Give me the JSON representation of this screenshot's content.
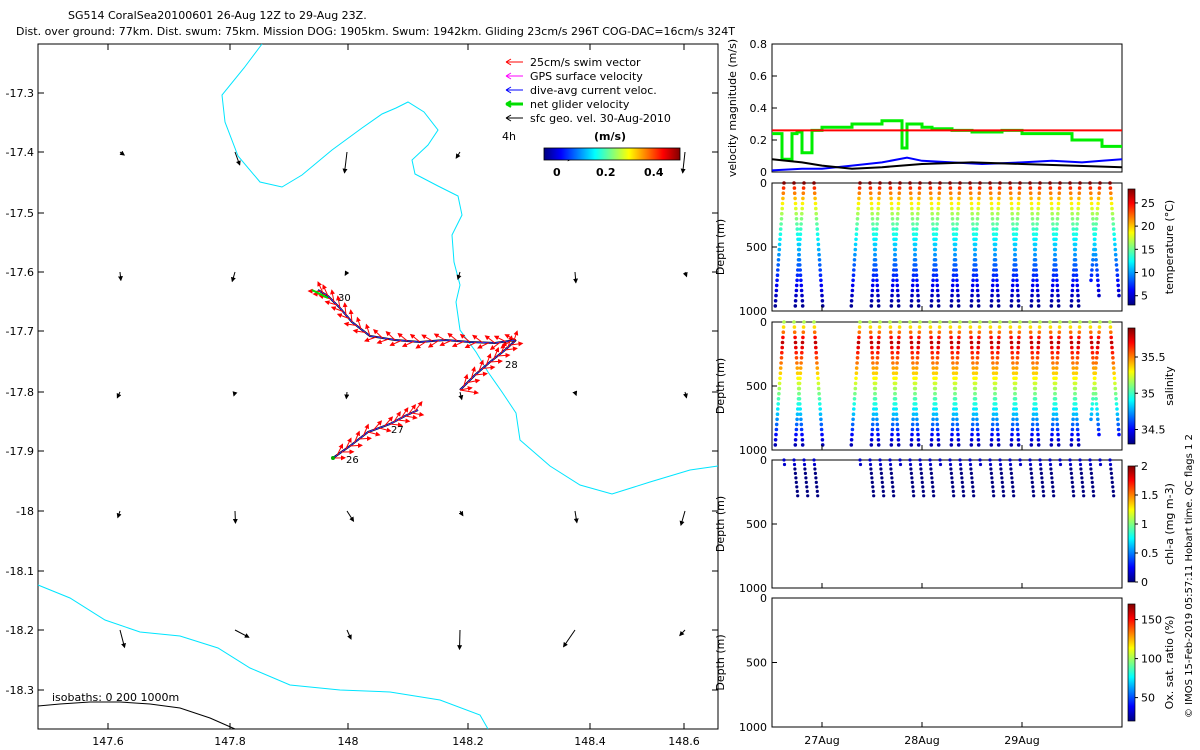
{
  "header": {
    "title_line1": "SG514 CoralSea20100601 26-Aug 12Z to 29-Aug 23Z.",
    "title_line2": "Dist. over ground: 77km. Dist. swum: 75km. Mission DOG: 1905km. Swum: 1942km. Gliding 23cm/s 296T COG-DAC=16cm/s 324T"
  },
  "side_note": "© IMOS 15-Feb-2019 05:57:11 Hobart time. QC flags 1  2",
  "map": {
    "xticks": [
      "147.6",
      "147.8",
      "148",
      "148.2",
      "148.4",
      "148.6"
    ],
    "yticks": [
      "-17.3",
      "-17.4",
      "-17.5",
      "-17.6",
      "-17.7",
      "-17.8",
      "-17.9",
      "-18",
      "-18.1",
      "-18.2",
      "-18.3"
    ],
    "legend": [
      {
        "label": "25cm/s swim vector",
        "color": "#ff0000"
      },
      {
        "label": "GPS surface velocity",
        "color": "#ff00ff"
      },
      {
        "label": "dive-avg current veloc.",
        "color": "#0000ff"
      },
      {
        "label": "net glider velocity",
        "color": "#00dd00"
      },
      {
        "label": "sfc geo. vel. 30-Aug-2010",
        "color": "#000000"
      }
    ],
    "legend_note": "4h",
    "colorbar_title": "(m/s)",
    "colorbar_ticks": [
      "0",
      "0.2",
      "0.4"
    ],
    "isobath_label": "isobaths: 0   200  1000m",
    "day_labels": [
      "26",
      "27",
      "28",
      "30"
    ]
  },
  "chart_data": [
    {
      "type": "line",
      "ylabel": "velocity magnitude (m/s)",
      "ylim": [
        0,
        0.8
      ],
      "yticks": [
        "0",
        "0.2",
        "0.4",
        "0.6",
        "0.8"
      ],
      "x_range_days": [
        26.5,
        30.0
      ],
      "series": [
        {
          "color": "#00ee00",
          "x": [
            26.5,
            26.6,
            26.6,
            26.7,
            26.7,
            26.75,
            26.75,
            26.8,
            26.8,
            26.9,
            26.9,
            27.0,
            27.0,
            27.3,
            27.3,
            27.6,
            27.6,
            27.8,
            27.8,
            27.85,
            27.85,
            28.0,
            28.0,
            28.1,
            28.1,
            28.3,
            28.3,
            28.5,
            28.5,
            28.8,
            28.8,
            29.0,
            29.0,
            29.5,
            29.5,
            29.8,
            29.8,
            30.0
          ],
          "y": [
            0.24,
            0.24,
            0.08,
            0.08,
            0.24,
            0.24,
            0.25,
            0.25,
            0.12,
            0.12,
            0.26,
            0.26,
            0.28,
            0.28,
            0.3,
            0.3,
            0.32,
            0.32,
            0.15,
            0.15,
            0.3,
            0.3,
            0.28,
            0.28,
            0.27,
            0.27,
            0.26,
            0.26,
            0.25,
            0.25,
            0.26,
            0.26,
            0.24,
            0.24,
            0.2,
            0.2,
            0.16,
            0.16
          ]
        },
        {
          "color": "#ff0000",
          "x": [
            26.5,
            27.3,
            27.85,
            30.0
          ],
          "y": [
            0.26,
            0.26,
            0.26,
            0.26
          ]
        },
        {
          "color": "#0000ff",
          "x": [
            26.5,
            26.8,
            27.0,
            27.3,
            27.6,
            27.85,
            28.0,
            28.3,
            28.6,
            29.0,
            29.3,
            29.6,
            29.8,
            30.0
          ],
          "y": [
            0.01,
            0.02,
            0.02,
            0.04,
            0.06,
            0.09,
            0.07,
            0.06,
            0.05,
            0.06,
            0.07,
            0.06,
            0.07,
            0.08
          ]
        },
        {
          "color": "#000000",
          "x": [
            26.5,
            26.8,
            27.0,
            27.3,
            27.6,
            28.0,
            28.5,
            29.0,
            29.5,
            30.0
          ],
          "y": [
            0.08,
            0.06,
            0.04,
            0.02,
            0.03,
            0.05,
            0.06,
            0.05,
            0.04,
            0.03
          ]
        }
      ]
    },
    {
      "type": "scatter",
      "ylabel": "Depth (m)",
      "ylim": [
        0,
        1000
      ],
      "yticks": [
        "0",
        "500",
        "1000"
      ],
      "clabel": "temperature (°C)",
      "cticks": [
        "5",
        "10",
        "15",
        "20",
        "25"
      ],
      "crange": [
        3,
        28
      ]
    },
    {
      "type": "scatter",
      "ylabel": "Depth (m)",
      "ylim": [
        0,
        1000
      ],
      "yticks": [
        "0",
        "500",
        "1000"
      ],
      "clabel": "salinity",
      "cticks": [
        "34.5",
        "35",
        "35.5"
      ],
      "crange": [
        34.3,
        35.9
      ]
    },
    {
      "type": "scatter",
      "ylabel": "Depth (m)",
      "ylim": [
        0,
        1000
      ],
      "yticks": [
        "0",
        "500",
        "1000"
      ],
      "clabel": "chl-a (mg m-3)",
      "cticks": [
        "0",
        "0.5",
        "1",
        "1.5",
        "2"
      ],
      "crange": [
        0,
        2
      ]
    },
    {
      "type": "scatter",
      "ylabel": "Depth (m)",
      "ylim": [
        0,
        1000
      ],
      "yticks": [
        "0",
        "500",
        "1000"
      ],
      "clabel": "Ox. sat. ratio (%)",
      "cticks": [
        "50",
        "100",
        "150"
      ],
      "crange": [
        20,
        170
      ],
      "xticks": [
        "27Aug",
        "28Aug",
        "29Aug"
      ]
    }
  ]
}
